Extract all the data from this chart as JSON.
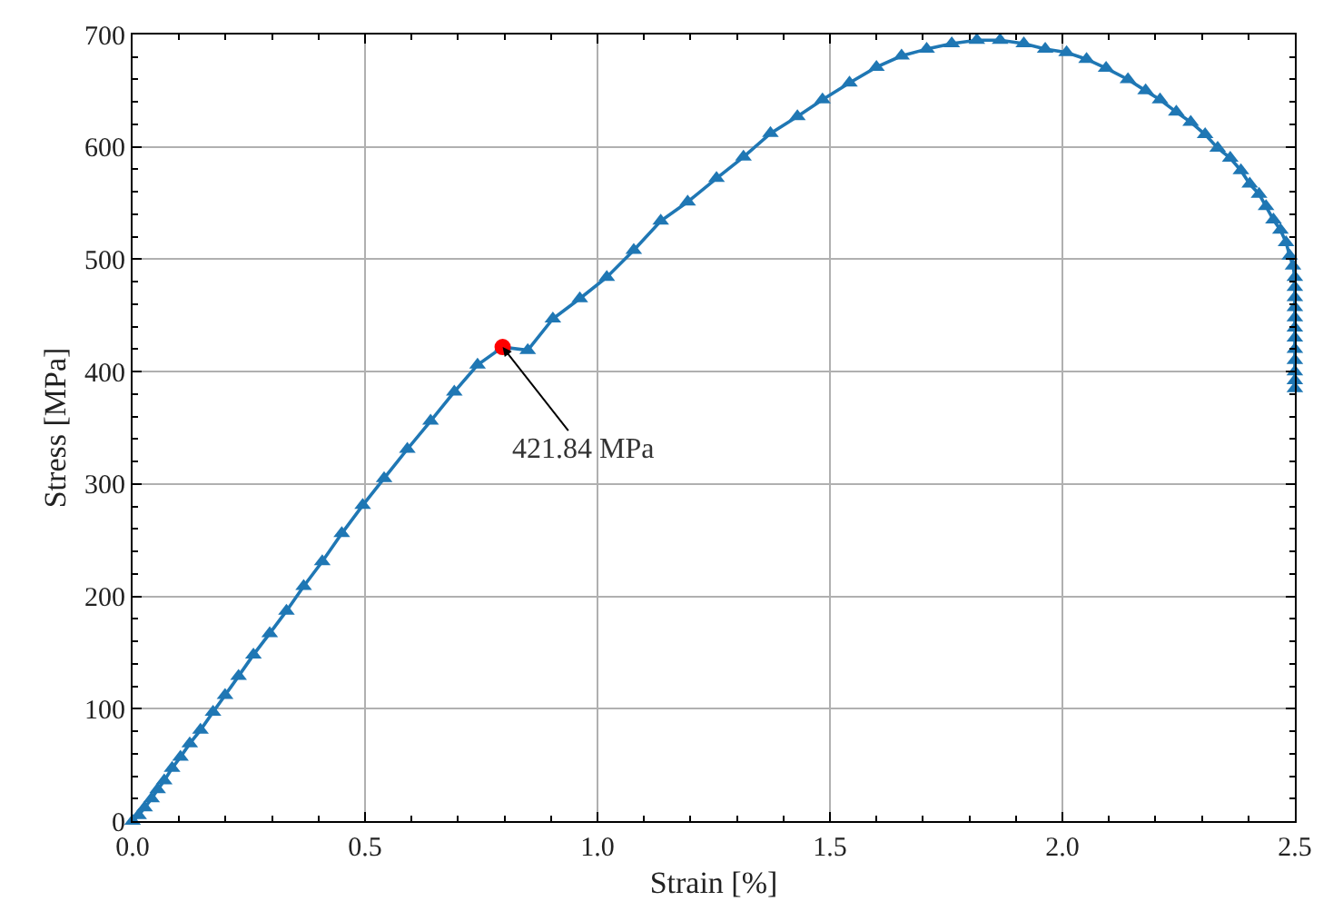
{
  "chart_data": {
    "type": "line",
    "xlabel": "Strain [%]",
    "ylabel": "Stress [MPa]",
    "xlim": [
      0,
      2.5
    ],
    "xticks": [
      {
        "value": 0,
        "label": "0.0"
      },
      0.5,
      {
        "value": 1,
        "label": "1.0"
      },
      1.5,
      {
        "value": 2,
        "label": "2.0"
      },
      2.5
    ],
    "ylim": [
      0,
      700
    ],
    "yticks": [
      0,
      100,
      200,
      300,
      400,
      500,
      600,
      700
    ],
    "grid": true,
    "series": [
      {
        "color": "#1f77b4",
        "marker": "triangle",
        "x": [
          0,
          0.013,
          0.026,
          0.041,
          0.054,
          0.068,
          0.085,
          0.103,
          0.123,
          0.146,
          0.173,
          0.199,
          0.228,
          0.26,
          0.295,
          0.331,
          0.368,
          0.408,
          0.45,
          0.495,
          0.541,
          0.591,
          0.641,
          0.692,
          0.742,
          0.796,
          0.85,
          0.904,
          0.962,
          1.02,
          1.078,
          1.136,
          1.194,
          1.256,
          1.314,
          1.372,
          1.43,
          1.484,
          1.542,
          1.6,
          1.654,
          1.708,
          1.762,
          1.816,
          1.866,
          1.917,
          1.963,
          2.009,
          2.052,
          2.094,
          2.141,
          2.179,
          2.21,
          2.245,
          2.276,
          2.307,
          2.334,
          2.361,
          2.384,
          2.403,
          2.423,
          2.438,
          2.454,
          2.469,
          2.481,
          2.489,
          2.496,
          2.5,
          2.5,
          2.5,
          2.5,
          2.5,
          2.5,
          2.5,
          2.5,
          2.5,
          2.5,
          2.5,
          2.5
        ],
        "values": [
          0,
          5,
          12,
          20,
          28,
          36,
          47,
          57,
          69,
          81,
          97,
          112,
          129,
          148,
          167,
          187,
          209,
          231,
          256,
          281,
          305,
          331,
          356,
          382,
          406,
          421.84,
          419,
          447,
          465,
          484,
          508,
          534,
          551,
          572,
          591,
          612,
          627,
          642,
          657,
          671,
          681,
          687,
          692,
          695,
          695,
          692,
          687,
          684,
          678,
          670,
          660,
          650,
          642,
          631,
          622,
          611,
          599,
          590,
          579,
          567,
          558,
          547,
          535,
          526,
          515,
          503,
          494,
          484,
          475,
          466,
          457,
          448,
          439,
          430,
          420,
          410,
          400,
          392,
          385
        ]
      },
      {
        "color": "#ff0000",
        "marker": "circle",
        "type": "scatter",
        "x": [
          0.796
        ],
        "values": [
          421.84
        ]
      }
    ],
    "annotations": [
      {
        "text": "421.84 MPa",
        "x": 0.796,
        "y": 421.84
      }
    ]
  }
}
